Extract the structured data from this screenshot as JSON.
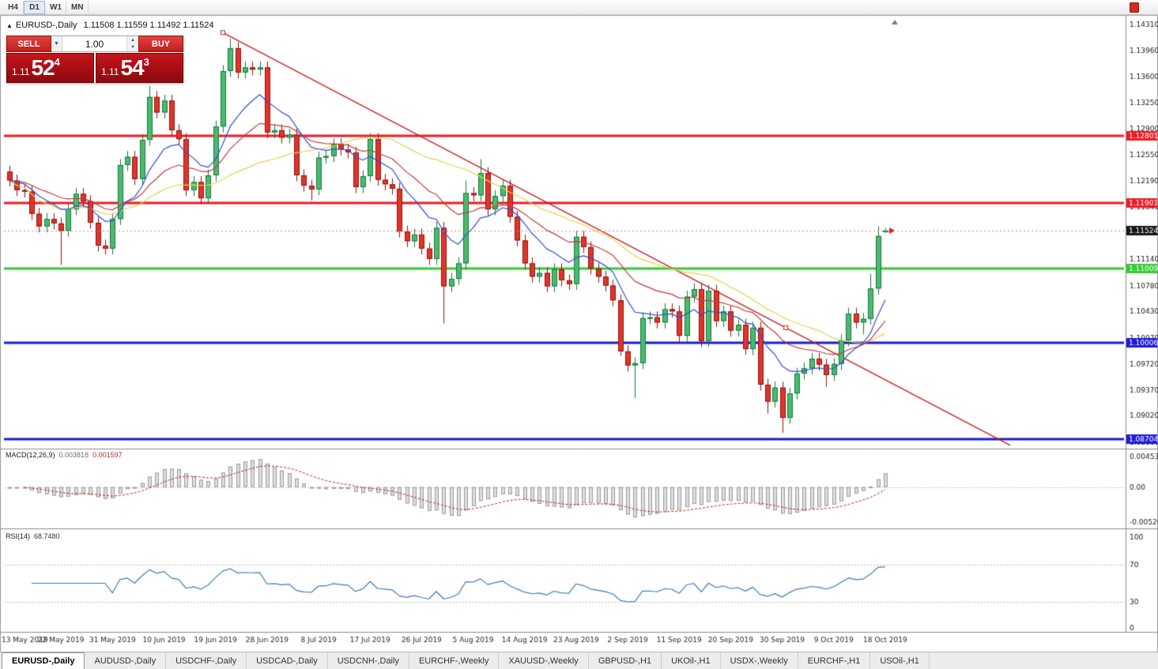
{
  "toolbar": {
    "timeframes": [
      "H4",
      "D1",
      "W1",
      "MN"
    ],
    "active": "D1"
  },
  "chart_header": {
    "arrow": "▲",
    "title": "EURUSD-,Daily",
    "ohlc": "1.11508 1.11559 1.11492 1.11524"
  },
  "trade_panel": {
    "sell_label": "SELL",
    "buy_label": "BUY",
    "volume": "1.00",
    "icons": {
      "dropdown": "▼",
      "spin_up": "▲",
      "spin_down": "▼"
    },
    "bid": {
      "prefix": "1.11",
      "big": "52",
      "sup": "4"
    },
    "ask": {
      "prefix": "1.11",
      "big": "54",
      "sup": "3"
    }
  },
  "indicator_labels": {
    "macd_name": "MACD(12,26,9)",
    "macd_value": "0.003818",
    "macd_signal_value": "0.001597",
    "rsi_name": "RSI(14)",
    "rsi_value": "68.7480"
  },
  "axes": {
    "price_ticks": [
      "1.14310",
      "1.13960",
      "1.13600",
      "1.13250",
      "1.12900",
      "1.12550",
      "1.12190",
      "1.11840",
      "1.11490",
      "1.11140",
      "1.10780",
      "1.10430",
      "1.10070",
      "1.09720",
      "1.09370",
      "1.09020",
      "1.08660"
    ],
    "macd_ticks": [
      {
        "label": "0.004536",
        "value": 0.004536
      },
      {
        "label": "0.00",
        "value": 0
      },
      {
        "label": "-0.005205",
        "value": -0.005205
      }
    ],
    "rsi_ticks": [
      {
        "label": "100",
        "value": 100
      },
      {
        "label": "70",
        "value": 70
      },
      {
        "label": "30",
        "value": 30
      },
      {
        "label": "0",
        "value": 0
      }
    ],
    "dates": [
      "13 May 2019",
      "22 May 2019",
      "31 May 2019",
      "10 Jun 2019",
      "19 Jun 2019",
      "28 Jun 2019",
      "8 Jul 2019",
      "17 Jul 2019",
      "26 Jul 2019",
      "5 Aug 2019",
      "14 Aug 2019",
      "23 Aug 2019",
      "2 Sep 2019",
      "11 Sep 2019",
      "20 Sep 2019",
      "30 Sep 2019",
      "9 Oct 2019",
      "18 Oct 2019"
    ],
    "date_label_step": 7
  },
  "tabs": {
    "items": [
      "EURUSD-,Daily",
      "AUDUSD-,Daily",
      "USDCHF-,Daily",
      "USDCAD-,Daily",
      "USDCNH-,Daily",
      "EURCHF-,Weekly",
      "XAUUSD-,Weekly",
      "GBPUSD-,H1",
      "UKOil-,H1",
      "USDX-,Weekly",
      "EURCHF-,H1",
      "USOil-,H1"
    ],
    "active_index": 0
  },
  "chart_data": {
    "type": "candlestick",
    "symbol": "EURUSD-",
    "timeframe": "Daily",
    "colors": {
      "up_fill": "#4cb96f",
      "up_border": "#0f7d3c",
      "down_fill": "#e1342a",
      "down_border": "#8f1410",
      "hist_fill": "#dedede",
      "hist_stroke": "#9c9c9c",
      "bid_line": "#cc8888",
      "price_arrow": "#cc2222",
      "shift_marker": "#7a7a7a"
    },
    "levels": [
      {
        "price": 1.12801,
        "label": "1.12801",
        "color": "#ed1c24",
        "width": 3
      },
      {
        "price": 1.11901,
        "label": "1.11901",
        "color": "#ed1c24",
        "width": 3
      },
      {
        "price": 1.11009,
        "label": "1.11009",
        "color": "#33cc33",
        "width": 3
      },
      {
        "price": 1.10006,
        "label": "1.10006",
        "color": "#1c1cd8",
        "width": 3
      },
      {
        "price": 1.08704,
        "label": "1.08704",
        "color": "#1c1cd8",
        "width": 3
      }
    ],
    "current_price": {
      "price": 1.11524,
      "label": "1.11524",
      "badge_color": "#151515"
    },
    "trendline": {
      "color": "#cc2020",
      "anchors": [
        {
          "index": 29,
          "price": 1.142
        },
        {
          "index": 105.5,
          "price": 1.1021
        }
      ],
      "extend_to_index": 136
    },
    "moving_averages": [
      {
        "name": "slow",
        "type": "sma",
        "period": 34,
        "color": "#e3d44d"
      },
      {
        "name": "medium",
        "type": "ema",
        "period": 21,
        "color": "#c23d3d"
      },
      {
        "name": "fast",
        "type": "ema",
        "period": 10,
        "color": "#2d50d8"
      }
    ],
    "macd": {
      "fast": 12,
      "slow": 26,
      "signal": 9
    },
    "rsi": {
      "period": 14,
      "color": "#3b7bbf",
      "levels": [
        70,
        30
      ]
    },
    "candles": [
      [
        1.1232,
        1.124,
        1.1212,
        1.122
      ],
      [
        1.122,
        1.1228,
        1.1199,
        1.1207
      ],
      [
        1.1207,
        1.1215,
        1.1197,
        1.1205
      ],
      [
        1.1205,
        1.1213,
        1.1167,
        1.1175
      ],
      [
        1.1175,
        1.1183,
        1.115,
        1.1158
      ],
      [
        1.1158,
        1.1176,
        1.115,
        1.1168
      ],
      [
        1.1168,
        1.1176,
        1.1154,
        1.1162
      ],
      [
        1.1162,
        1.117,
        1.1106,
        1.1152
      ],
      [
        1.1152,
        1.1189,
        1.1144,
        1.1181
      ],
      [
        1.1181,
        1.121,
        1.1173,
        1.1202
      ],
      [
        1.1202,
        1.121,
        1.1184,
        1.1192
      ],
      [
        1.1192,
        1.12,
        1.1155,
        1.1163
      ],
      [
        1.1163,
        1.1171,
        1.1124,
        1.1132
      ],
      [
        1.1132,
        1.114,
        1.112,
        1.1128
      ],
      [
        1.1128,
        1.1176,
        1.112,
        1.1168
      ],
      [
        1.1168,
        1.1249,
        1.116,
        1.1241
      ],
      [
        1.1241,
        1.126,
        1.1233,
        1.1252
      ],
      [
        1.1252,
        1.126,
        1.1214,
        1.1222
      ],
      [
        1.1222,
        1.1283,
        1.1214,
        1.1275
      ],
      [
        1.1275,
        1.1348,
        1.1267,
        1.1333
      ],
      [
        1.1333,
        1.1341,
        1.1304,
        1.1312
      ],
      [
        1.1312,
        1.1336,
        1.1304,
        1.1328
      ],
      [
        1.1328,
        1.1336,
        1.128,
        1.1288
      ],
      [
        1.1288,
        1.1296,
        1.1268,
        1.1276
      ],
      [
        1.1276,
        1.1284,
        1.1199,
        1.1207
      ],
      [
        1.1207,
        1.1226,
        1.1199,
        1.1218
      ],
      [
        1.1218,
        1.1226,
        1.1188,
        1.1196
      ],
      [
        1.1196,
        1.1235,
        1.1188,
        1.1227
      ],
      [
        1.1227,
        1.1301,
        1.1219,
        1.1293
      ],
      [
        1.1293,
        1.1376,
        1.1285,
        1.1368
      ],
      [
        1.1368,
        1.1412,
        1.136,
        1.1399
      ],
      [
        1.1399,
        1.1407,
        1.1358,
        1.1366
      ],
      [
        1.1366,
        1.1381,
        1.1358,
        1.1373
      ],
      [
        1.1373,
        1.1381,
        1.1362,
        1.137
      ],
      [
        1.137,
        1.1381,
        1.1362,
        1.1373
      ],
      [
        1.1373,
        1.1381,
        1.1277,
        1.1285
      ],
      [
        1.1285,
        1.1296,
        1.1277,
        1.1288
      ],
      [
        1.1288,
        1.1296,
        1.127,
        1.1278
      ],
      [
        1.1278,
        1.129,
        1.127,
        1.1282
      ],
      [
        1.1282,
        1.129,
        1.1219,
        1.1227
      ],
      [
        1.1227,
        1.1235,
        1.1205,
        1.1213
      ],
      [
        1.1213,
        1.1221,
        1.1193,
        1.1208
      ],
      [
        1.1208,
        1.1259,
        1.12,
        1.1251
      ],
      [
        1.1251,
        1.1261,
        1.1243,
        1.1253
      ],
      [
        1.1253,
        1.1277,
        1.1245,
        1.1269
      ],
      [
        1.1269,
        1.1277,
        1.1254,
        1.1262
      ],
      [
        1.1262,
        1.127,
        1.125,
        1.1258
      ],
      [
        1.1258,
        1.1266,
        1.1203,
        1.1211
      ],
      [
        1.1211,
        1.1234,
        1.1203,
        1.1226
      ],
      [
        1.1226,
        1.1284,
        1.1218,
        1.1276
      ],
      [
        1.1276,
        1.1284,
        1.1213,
        1.1221
      ],
      [
        1.1221,
        1.1229,
        1.1207,
        1.1215
      ],
      [
        1.1215,
        1.1223,
        1.1201,
        1.1209
      ],
      [
        1.1209,
        1.1217,
        1.1143,
        1.1151
      ],
      [
        1.1151,
        1.1159,
        1.113,
        1.1138
      ],
      [
        1.1138,
        1.1155,
        1.113,
        1.1147
      ],
      [
        1.1147,
        1.1155,
        1.112,
        1.1128
      ],
      [
        1.1128,
        1.1136,
        1.1106,
        1.1114
      ],
      [
        1.1114,
        1.1164,
        1.1106,
        1.1156
      ],
      [
        1.1156,
        1.1164,
        1.1027,
        1.1077
      ],
      [
        1.1077,
        1.1095,
        1.1069,
        1.1087
      ],
      [
        1.1087,
        1.1116,
        1.1079,
        1.1108
      ],
      [
        1.1108,
        1.122,
        1.11,
        1.1203
      ],
      [
        1.1203,
        1.1211,
        1.1192,
        1.12
      ],
      [
        1.12,
        1.1249,
        1.1192,
        1.123
      ],
      [
        1.123,
        1.1238,
        1.1173,
        1.1181
      ],
      [
        1.1181,
        1.1207,
        1.1173,
        1.1199
      ],
      [
        1.1199,
        1.1221,
        1.1191,
        1.1213
      ],
      [
        1.1213,
        1.1221,
        1.1163,
        1.1171
      ],
      [
        1.1171,
        1.1179,
        1.1131,
        1.1139
      ],
      [
        1.1139,
        1.1147,
        1.11,
        1.1108
      ],
      [
        1.1108,
        1.1116,
        1.1082,
        1.109
      ],
      [
        1.109,
        1.1103,
        1.1082,
        1.1095
      ],
      [
        1.1095,
        1.1103,
        1.1069,
        1.1077
      ],
      [
        1.1077,
        1.1108,
        1.1069,
        1.11
      ],
      [
        1.11,
        1.1108,
        1.1077,
        1.1085
      ],
      [
        1.1085,
        1.1093,
        1.1072,
        1.108
      ],
      [
        1.108,
        1.1152,
        1.1072,
        1.1144
      ],
      [
        1.1144,
        1.1152,
        1.1122,
        1.113
      ],
      [
        1.113,
        1.1138,
        1.1093,
        1.1101
      ],
      [
        1.1101,
        1.1109,
        1.1082,
        1.109
      ],
      [
        1.109,
        1.1098,
        1.107,
        1.1078
      ],
      [
        1.1078,
        1.1086,
        1.105,
        1.1058
      ],
      [
        1.1058,
        1.1066,
        1.0983,
        1.0989
      ],
      [
        1.0989,
        1.0997,
        1.0962,
        1.097
      ],
      [
        1.097,
        1.0981,
        1.0926,
        1.0973
      ],
      [
        1.0973,
        1.1042,
        1.0965,
        1.1034
      ],
      [
        1.1034,
        1.1043,
        1.1026,
        1.1035
      ],
      [
        1.1035,
        1.1043,
        1.102,
        1.1028
      ],
      [
        1.1028,
        1.1054,
        1.102,
        1.1046
      ],
      [
        1.1046,
        1.1054,
        1.1035,
        1.1043
      ],
      [
        1.1043,
        1.1051,
        1.1002,
        1.101
      ],
      [
        1.101,
        1.1071,
        1.1002,
        1.1063
      ],
      [
        1.1063,
        1.1081,
        1.1055,
        1.1073
      ],
      [
        1.1073,
        1.1081,
        1.0995,
        1.1003
      ],
      [
        1.1003,
        1.1079,
        1.0995,
        1.1071
      ],
      [
        1.1071,
        1.1079,
        1.1022,
        1.103
      ],
      [
        1.103,
        1.1051,
        1.1022,
        1.1043
      ],
      [
        1.1043,
        1.1051,
        1.1009,
        1.1017
      ],
      [
        1.1017,
        1.1033,
        1.1009,
        1.1025
      ],
      [
        1.1025,
        1.1033,
        1.0984,
        1.0992
      ],
      [
        1.0992,
        1.1029,
        1.0984,
        1.1021
      ],
      [
        1.1021,
        1.1029,
        1.0936,
        1.0944
      ],
      [
        1.0944,
        1.0952,
        1.0905,
        1.0921
      ],
      [
        1.0921,
        1.0948,
        1.0913,
        1.094
      ],
      [
        1.094,
        1.0948,
        1.0879,
        1.0899
      ],
      [
        1.0899,
        1.094,
        1.0891,
        1.0932
      ],
      [
        1.0932,
        1.0967,
        1.0924,
        1.0959
      ],
      [
        1.0959,
        1.0974,
        1.0951,
        1.0966
      ],
      [
        1.0966,
        1.0987,
        1.0958,
        1.0979
      ],
      [
        1.0979,
        1.0987,
        1.0963,
        1.0971
      ],
      [
        1.0971,
        1.0979,
        1.0941,
        1.0957
      ],
      [
        1.0957,
        1.098,
        1.0949,
        1.0972
      ],
      [
        1.0972,
        1.1012,
        1.0964,
        1.1004
      ],
      [
        1.1004,
        1.1048,
        1.0996,
        1.104
      ],
      [
        1.104,
        1.1048,
        1.102,
        1.1028
      ],
      [
        1.1028,
        1.1041,
        1.1012,
        1.1033
      ],
      [
        1.1033,
        1.1094,
        1.1025,
        1.1074
      ],
      [
        1.1074,
        1.1158,
        1.1066,
        1.1145
      ],
      [
        1.11508,
        1.11559,
        1.11492,
        1.11524
      ]
    ]
  }
}
